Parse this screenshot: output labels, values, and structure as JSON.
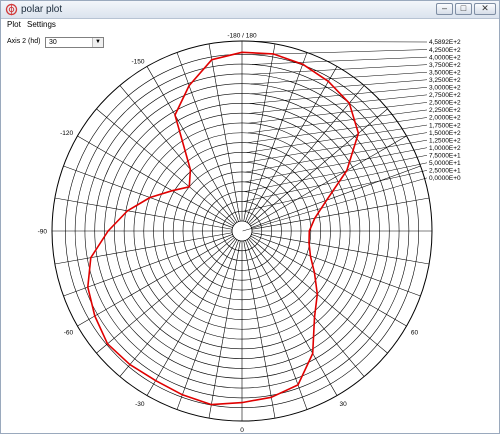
{
  "window": {
    "title": "polar plot",
    "buttons": [
      "minimize",
      "maximize",
      "close"
    ]
  },
  "menu": {
    "items": [
      "Plot",
      "Settings"
    ]
  },
  "controls": {
    "axis2_label": "Axis 2 (hd)",
    "axis2_value": "30"
  },
  "colors": {
    "curve": "#e00000",
    "grid": "#000000"
  },
  "chart_data": {
    "type": "polar-line",
    "title": "",
    "angle_labels": [
      {
        "deg": 180,
        "text": "-180 / 180"
      },
      {
        "deg": -150,
        "text": "-150"
      },
      {
        "deg": -120,
        "text": "-120"
      },
      {
        "deg": -90,
        "text": "-90"
      },
      {
        "deg": -60,
        "text": "-60"
      },
      {
        "deg": -30,
        "text": "-30"
      },
      {
        "deg": 0,
        "text": "0"
      },
      {
        "deg": 30,
        "text": "30"
      },
      {
        "deg": 60,
        "text": "60"
      }
    ],
    "radial_max": 458.92,
    "radial_ticks": [
      {
        "value": 458.92,
        "label": "4,5892E+2"
      },
      {
        "value": 425,
        "label": "4,2500E+2"
      },
      {
        "value": 400,
        "label": "4,0000E+2"
      },
      {
        "value": 375,
        "label": "3,7500E+2"
      },
      {
        "value": 350,
        "label": "3,5000E+2"
      },
      {
        "value": 325,
        "label": "3,2500E+2"
      },
      {
        "value": 300,
        "label": "3,0000E+2"
      },
      {
        "value": 275,
        "label": "2,7500E+2"
      },
      {
        "value": 250,
        "label": "2,5000E+2"
      },
      {
        "value": 225,
        "label": "2,2500E+2"
      },
      {
        "value": 200,
        "label": "2,0000E+2"
      },
      {
        "value": 175,
        "label": "1,7500E+2"
      },
      {
        "value": 150,
        "label": "1,5000E+2"
      },
      {
        "value": 125,
        "label": "1,2500E+2"
      },
      {
        "value": 100,
        "label": "1,0000E+2"
      },
      {
        "value": 75,
        "label": "7,5000E+1"
      },
      {
        "value": 50,
        "label": "5,0000E+1"
      },
      {
        "value": 25,
        "label": "2,5000E+1"
      },
      {
        "value": 0,
        "label": "0,0000E+0"
      }
    ],
    "series": [
      {
        "points": [
          {
            "theta": 0,
            "r": 412
          },
          {
            "theta": 10,
            "r": 405
          },
          {
            "theta": 20,
            "r": 392
          },
          {
            "theta": 30,
            "r": 335
          },
          {
            "theta": 40,
            "r": 262
          },
          {
            "theta": 50,
            "r": 225
          },
          {
            "theta": 60,
            "r": 188
          },
          {
            "theta": 70,
            "r": 160
          },
          {
            "theta": 80,
            "r": 148
          },
          {
            "theta": 90,
            "r": 146
          },
          {
            "theta": 100,
            "r": 163
          },
          {
            "theta": 110,
            "r": 204
          },
          {
            "theta": 120,
            "r": 283
          },
          {
            "theta": 130,
            "r": 362
          },
          {
            "theta": 140,
            "r": 400
          },
          {
            "theta": 150,
            "r": 415
          },
          {
            "theta": 160,
            "r": 427
          },
          {
            "theta": 170,
            "r": 433
          },
          {
            "theta": 180,
            "r": 430
          },
          {
            "theta": 190,
            "r": 418
          },
          {
            "theta": 200,
            "r": 369
          },
          {
            "theta": 210,
            "r": 316
          },
          {
            "theta": 220,
            "r": 179
          },
          {
            "theta": 230,
            "r": 150
          },
          {
            "theta": 240,
            "r": 180
          },
          {
            "theta": 250,
            "r": 224
          },
          {
            "theta": 260,
            "r": 271
          },
          {
            "theta": 270,
            "r": 316
          },
          {
            "theta": 280,
            "r": 366
          },
          {
            "theta": 290,
            "r": 393
          },
          {
            "theta": 300,
            "r": 408
          },
          {
            "theta": 310,
            "r": 422
          },
          {
            "theta": 320,
            "r": 419
          },
          {
            "theta": 330,
            "r": 415
          },
          {
            "theta": 340,
            "r": 419
          },
          {
            "theta": 350,
            "r": 424
          },
          {
            "theta": 360,
            "r": 412
          }
        ]
      }
    ]
  }
}
